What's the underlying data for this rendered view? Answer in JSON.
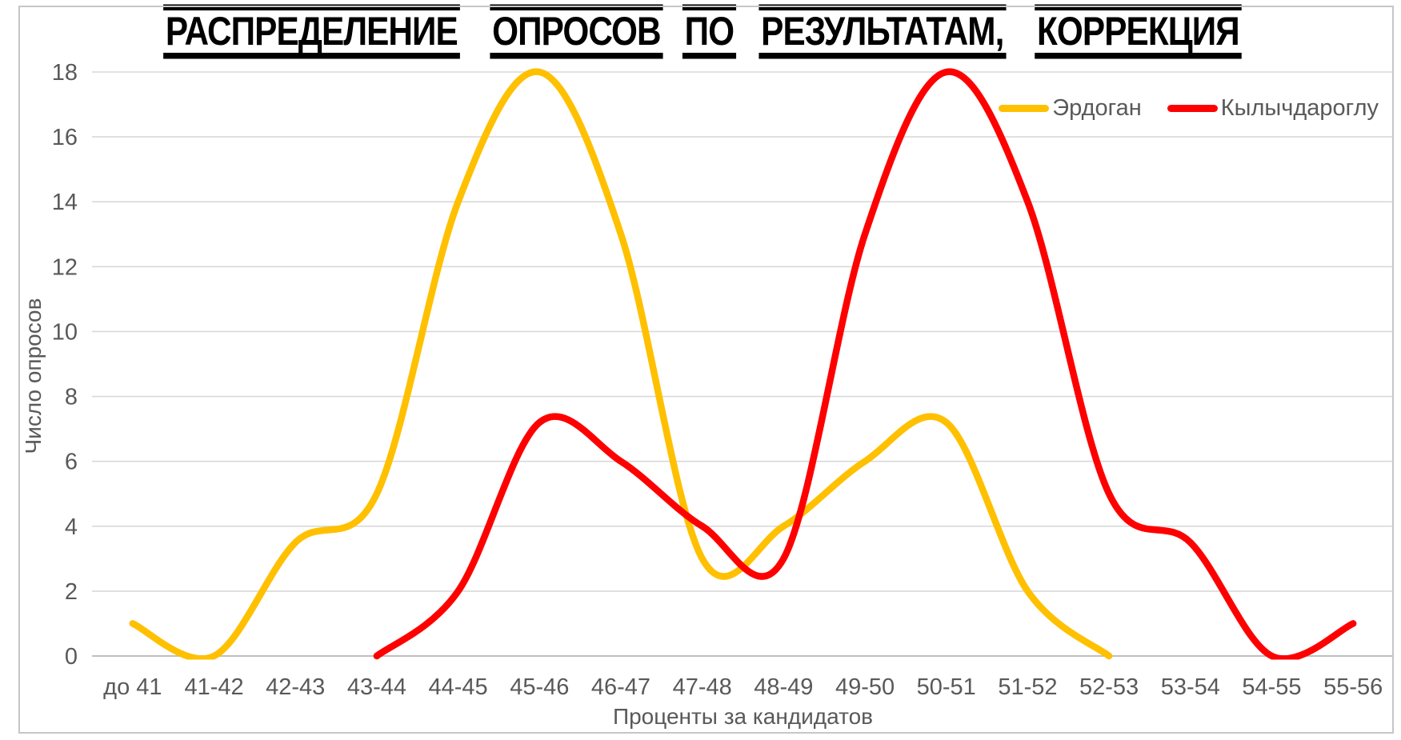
{
  "chart_data": {
    "type": "line",
    "title": "РАСПРЕДЕЛЕНИЕ ОПРОСОВ ПО РЕЗУЛЬТАТАМ, КОРРЕКЦИЯ",
    "title_words": [
      "РАСПРЕДЕЛЕНИЕ",
      "ОПРОСОВ",
      "ПО",
      "РЕЗУЛЬТАТАМ,",
      "КОРРЕКЦИЯ"
    ],
    "xlabel": "Проценты за кандидатов",
    "ylabel": "Число опросов",
    "categories": [
      "до 41",
      "41-42",
      "42-43",
      "43-44",
      "44-45",
      "45-46",
      "46-47",
      "47-48",
      "48-49",
      "49-50",
      "50-51",
      "51-52",
      "52-53",
      "53-54",
      "54-55",
      "55-56"
    ],
    "series": [
      {
        "name": "Эрдоган",
        "color": "#FFC000",
        "values": [
          1,
          0,
          3.5,
          5,
          14,
          18,
          13,
          3,
          4,
          6,
          7.2,
          2,
          0,
          null,
          null,
          null
        ]
      },
      {
        "name": "Кылычдароглу",
        "color": "#FF0000",
        "values": [
          null,
          null,
          null,
          0,
          2,
          7.2,
          6,
          4,
          3,
          13,
          18,
          14,
          5,
          3.5,
          0,
          1
        ]
      }
    ],
    "ylim": [
      0,
      18
    ],
    "ytick_step": 2,
    "yticks": [
      0,
      2,
      4,
      6,
      8,
      10,
      12,
      14,
      16,
      18
    ],
    "grid": true,
    "line_smoothing": true,
    "legend_position": "top-right"
  },
  "colors": {
    "background": "#FFFFFF",
    "grid": "#D9D9D9",
    "axis_line": "#BFBFBF",
    "tick_text": "#595959",
    "title_text": "#000000",
    "chart_border": "#C6C6C6"
  }
}
